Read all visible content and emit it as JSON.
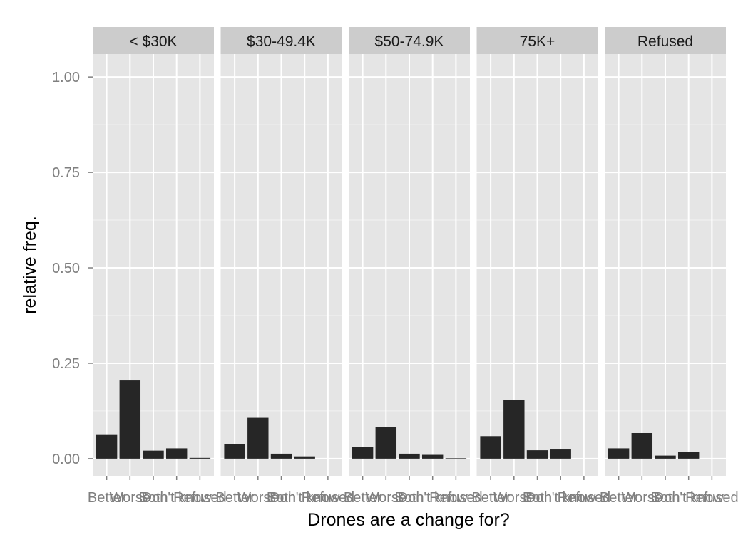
{
  "chart_data": {
    "type": "bar",
    "xlabel": "Drones are a change for?",
    "ylabel": "relative freq.",
    "ylim": [
      -0.045,
      1.06
    ],
    "yticks": [
      0.0,
      0.25,
      0.5,
      0.75,
      1.0
    ],
    "ytick_labels": [
      "0.00",
      "0.25",
      "0.50",
      "0.75",
      "1.00"
    ],
    "categories": [
      "Better",
      "Worse",
      "Both",
      "Don't know",
      "Refused"
    ],
    "facets": [
      {
        "label": "< $30K",
        "values": [
          0.062,
          0.205,
          0.021,
          0.027,
          0.002
        ]
      },
      {
        "label": "$30-49.4K",
        "values": [
          0.039,
          0.107,
          0.013,
          0.006,
          0.0
        ]
      },
      {
        "label": "$50-74.9K",
        "values": [
          0.03,
          0.083,
          0.013,
          0.01,
          0.001
        ]
      },
      {
        "label": "75K+",
        "values": [
          0.059,
          0.153,
          0.022,
          0.024,
          0.0
        ]
      },
      {
        "label": "Refused",
        "values": [
          0.027,
          0.067,
          0.008,
          0.017,
          0.0
        ]
      }
    ],
    "colors": {
      "bar": "#262626",
      "panel": "#e5e5e5",
      "strip": "#cccccc"
    }
  }
}
